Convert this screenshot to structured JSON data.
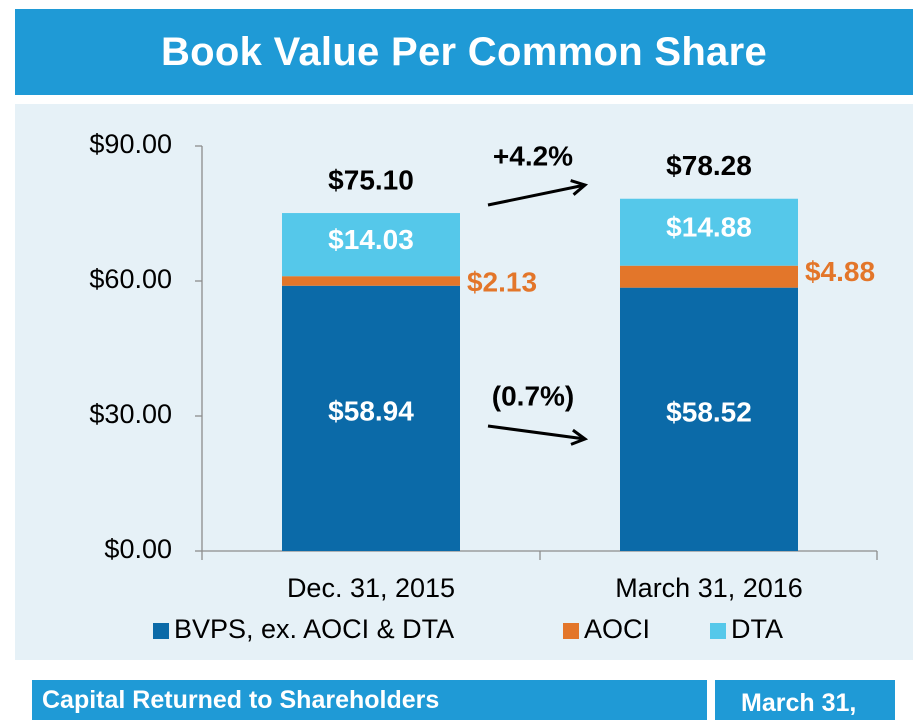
{
  "header": {
    "title": "Book Value Per Common Share"
  },
  "footer": {
    "section_title": "Capital Returned to Shareholders",
    "column_header": "March 31,"
  },
  "colors": {
    "title_bar": "#1f9ad6",
    "panel_background": "#e6f1f7",
    "bvps": "#0b6aa8",
    "aoci": "#e3762a",
    "dta": "#55c8ea"
  },
  "chart_data": {
    "type": "bar",
    "stacked": true,
    "categories": [
      "Dec. 31, 2015",
      "March 31, 2016"
    ],
    "series": [
      {
        "name": "BVPS, ex. AOCI & DTA",
        "values": [
          58.94,
          58.52
        ],
        "labels": [
          "$58.94",
          "$58.52"
        ],
        "color": "#0b6aa8"
      },
      {
        "name": "AOCI",
        "values": [
          2.13,
          4.88
        ],
        "labels": [
          "$2.13",
          "$4.88"
        ],
        "color": "#e3762a"
      },
      {
        "name": "DTA",
        "values": [
          14.03,
          14.88
        ],
        "labels": [
          "$14.03",
          "$14.88"
        ],
        "color": "#55c8ea"
      }
    ],
    "totals": [
      75.1,
      78.28
    ],
    "total_labels": [
      "$75.10",
      "$78.28"
    ],
    "ylim": [
      0,
      90
    ],
    "yticks": [
      0,
      30,
      60,
      90
    ],
    "ytick_labels": [
      "$0.00",
      "$30.00",
      "$60.00",
      "$90.00"
    ],
    "annotations": [
      "+4.2%",
      "(0.7%)"
    ],
    "legend_position": "bottom",
    "grid": false
  }
}
